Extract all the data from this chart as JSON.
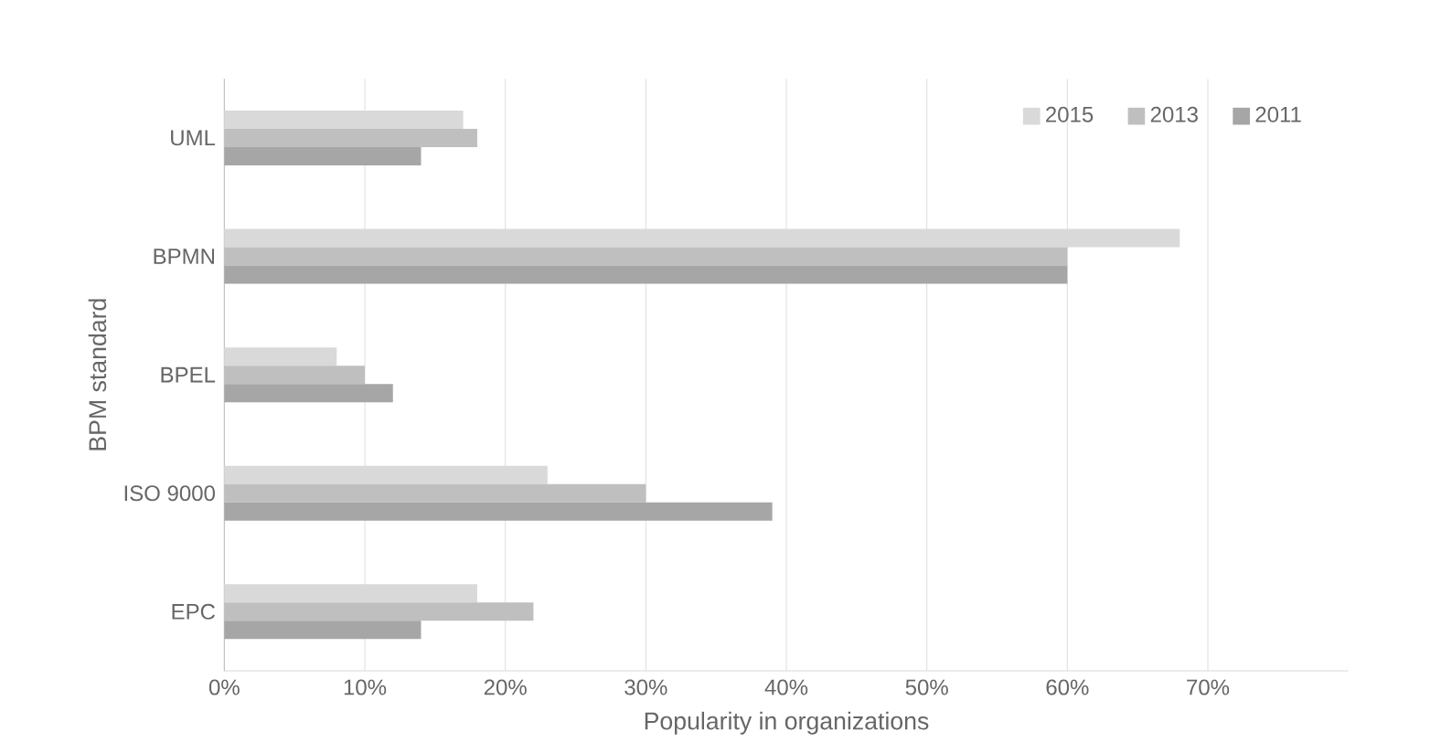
{
  "chart_data": {
    "type": "bar",
    "orientation": "horizontal",
    "xlabel": "Popularity in organizations",
    "ylabel": "BPM standard",
    "categories": [
      "UML",
      "BPMN",
      "BPEL",
      "ISO 9000",
      "EPC"
    ],
    "series": [
      {
        "name": "2015",
        "color": "#d9d9d9",
        "values": [
          17,
          68,
          8,
          23,
          18
        ]
      },
      {
        "name": "2013",
        "color": "#bfbfbf",
        "values": [
          18,
          60,
          10,
          30,
          22
        ]
      },
      {
        "name": "2011",
        "color": "#a6a6a6",
        "values": [
          14,
          60,
          12,
          39,
          14
        ]
      }
    ],
    "xlim": [
      0,
      80
    ],
    "xticks": [
      {
        "value": 0,
        "label": "0%"
      },
      {
        "value": 10,
        "label": "10%"
      },
      {
        "value": 20,
        "label": "20%"
      },
      {
        "value": 30,
        "label": "30%"
      },
      {
        "value": 40,
        "label": "40%"
      },
      {
        "value": 50,
        "label": "50%"
      },
      {
        "value": 60,
        "label": "60%"
      },
      {
        "value": 70,
        "label": "70%"
      }
    ],
    "grid": "x",
    "legend": "top right"
  }
}
